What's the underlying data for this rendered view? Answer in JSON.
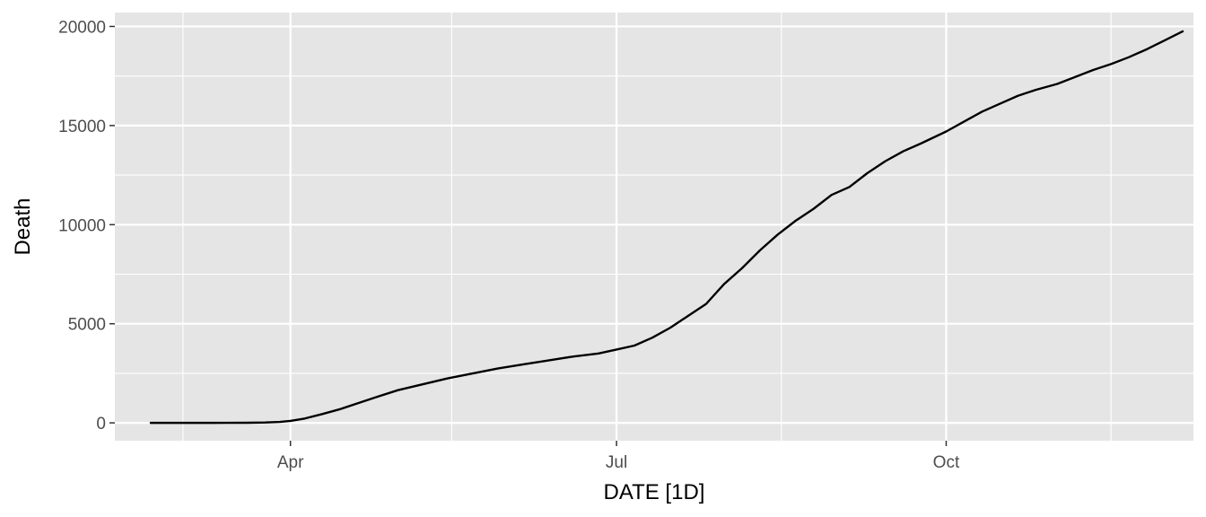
{
  "chart_data": {
    "type": "line",
    "title": "",
    "xlabel": "DATE [1D]",
    "ylabel": "Death",
    "xlim": [
      "2020-02-12",
      "2020-12-09"
    ],
    "ylim": [
      -900,
      20700
    ],
    "x_major_ticks": [
      "2020-04-01",
      "2020-07-01",
      "2020-10-01"
    ],
    "x_tick_labels": [
      "Apr",
      "Jul",
      "Oct"
    ],
    "x_minor_ticks": [
      "2020-03-02",
      "2020-05-16",
      "2020-08-16",
      "2020-11-16"
    ],
    "y_ticks": [
      0,
      5000,
      10000,
      15000,
      20000
    ],
    "y_tick_labels": [
      "0",
      "5000",
      "10000",
      "15000",
      "20000"
    ],
    "grid": true,
    "legend": "none",
    "colors": {
      "panel": "#e5e5e5",
      "grid": "#ffffff",
      "line": "#000000"
    },
    "series": [
      {
        "x": [
          "2020-02-22",
          "2020-03-10",
          "2020-03-20",
          "2020-03-25",
          "2020-03-29",
          "2020-04-01",
          "2020-04-05",
          "2020-04-10",
          "2020-04-15",
          "2020-04-20",
          "2020-04-25",
          "2020-05-01",
          "2020-05-08",
          "2020-05-15",
          "2020-05-22",
          "2020-05-29",
          "2020-06-05",
          "2020-06-12",
          "2020-06-19",
          "2020-06-26",
          "2020-07-01",
          "2020-07-06",
          "2020-07-11",
          "2020-07-16",
          "2020-07-21",
          "2020-07-26",
          "2020-07-31",
          "2020-08-05",
          "2020-08-10",
          "2020-08-15",
          "2020-08-20",
          "2020-08-25",
          "2020-08-30",
          "2020-09-04",
          "2020-09-09",
          "2020-09-14",
          "2020-09-19",
          "2020-09-24",
          "2020-10-01",
          "2020-10-06",
          "2020-10-11",
          "2020-10-16",
          "2020-10-21",
          "2020-10-26",
          "2020-11-01",
          "2020-11-06",
          "2020-11-11",
          "2020-11-16",
          "2020-11-21",
          "2020-11-26",
          "2020-12-01",
          "2020-12-06"
        ],
        "y": [
          0,
          0,
          5,
          20,
          50,
          100,
          220,
          450,
          700,
          1000,
          1300,
          1650,
          1950,
          2250,
          2500,
          2750,
          2950,
          3150,
          3350,
          3500,
          3700,
          3900,
          4300,
          4800,
          5400,
          6000,
          7000,
          7800,
          8700,
          9500,
          10200,
          10800,
          11500,
          11900,
          12600,
          13200,
          13700,
          14100,
          14700,
          15200,
          15700,
          16100,
          16500,
          16800,
          17100,
          17450,
          17800,
          18100,
          18450,
          18850,
          19300,
          19750
        ]
      }
    ]
  }
}
